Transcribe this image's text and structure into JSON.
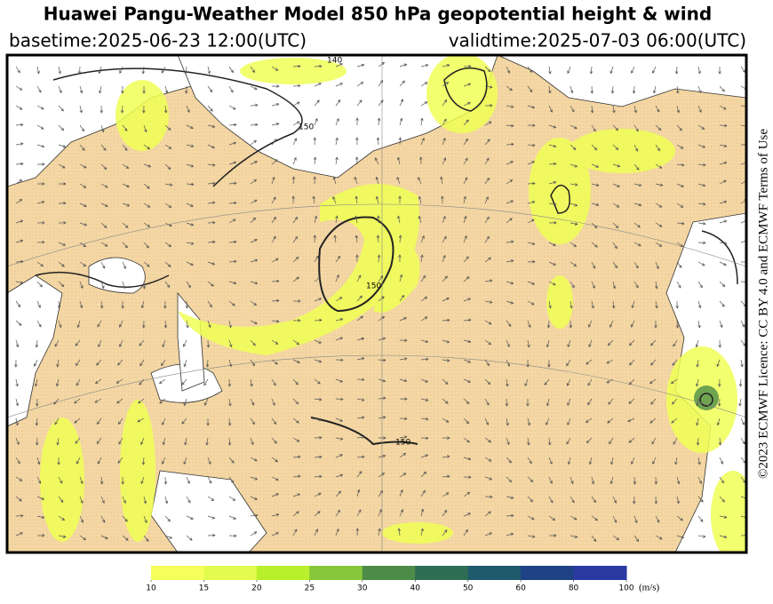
{
  "header": {
    "title": "Huawei Pangu-Weather Model 850 hPa geopotential height & wind",
    "basetime": "basetime:2025-06-23 12:00(UTC)",
    "validtime": "validtime:2025-07-03 06:00(UTC)"
  },
  "credit": "©2023 ECMWF Licence: CC BY 4.0 and ECMWF Terms of Use",
  "map": {
    "contour_labels": [
      "150",
      "150",
      "150",
      "140"
    ]
  },
  "colorbar": {
    "ticks": [
      10,
      15,
      20,
      25,
      30,
      40,
      50,
      60,
      80,
      100
    ],
    "colors": [
      "#f5ff5c",
      "#e2fb4c",
      "#b8f02c",
      "#86c63a",
      "#4c8c48",
      "#2f6e54",
      "#1f5a6c",
      "#1f4286",
      "#2a3aa2"
    ],
    "unit": "(m/s)"
  }
}
